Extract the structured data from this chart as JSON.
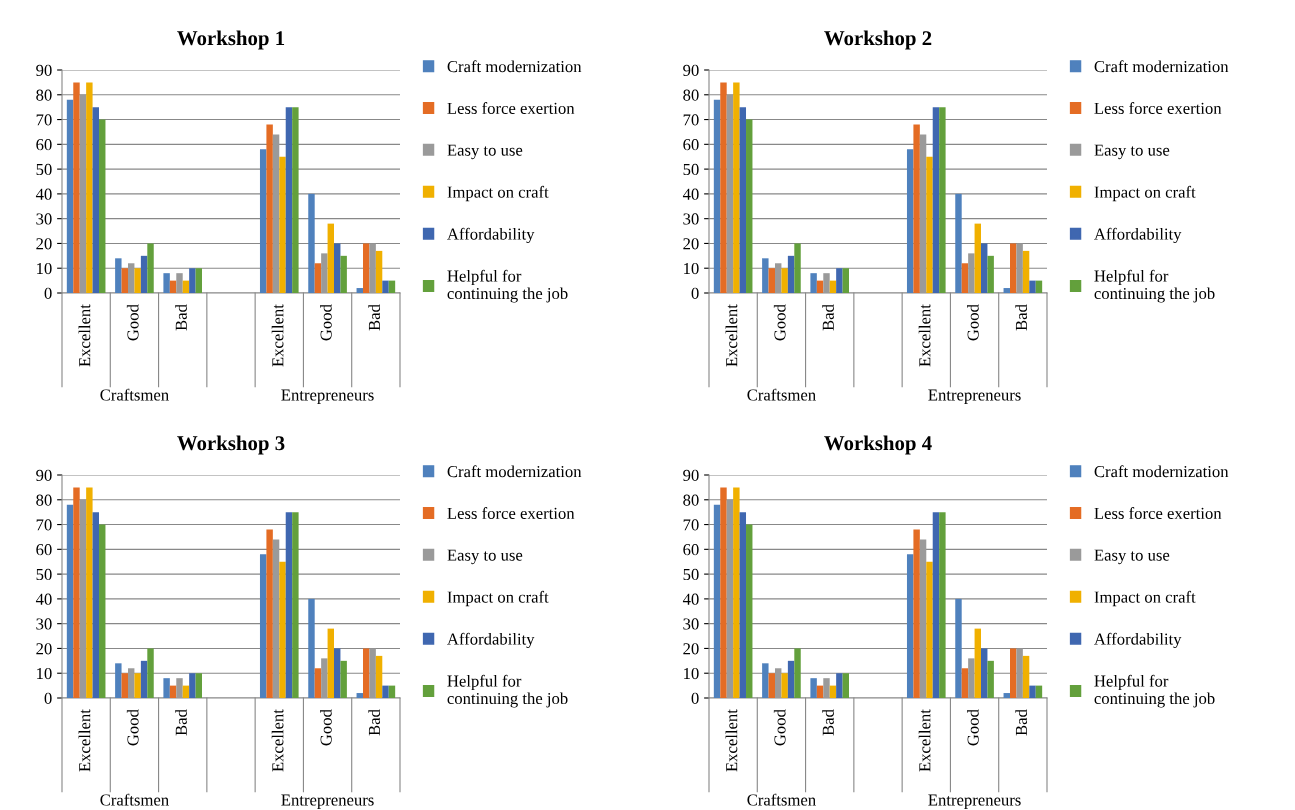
{
  "chart_data": [
    {
      "type": "bar",
      "title": "Workshop 1",
      "categories": [
        "Excellent",
        "Good",
        "Bad",
        null,
        "Excellent",
        "Good",
        "Bad"
      ],
      "annotations": [
        "Craftsmen",
        "Entrepreneurs"
      ],
      "ylim": [
        0,
        90
      ],
      "yticks": [
        0,
        10,
        20,
        30,
        40,
        50,
        60,
        70,
        80,
        90
      ],
      "grid": "y",
      "legend": "right",
      "series": [
        {
          "name": "Craft modernization",
          "color": "#4f81bd",
          "values": [
            78,
            14,
            8,
            null,
            58,
            40,
            2
          ]
        },
        {
          "name": "Less force exertion",
          "color": "#e46c24",
          "values": [
            85,
            10,
            5,
            null,
            68,
            12,
            20
          ]
        },
        {
          "name": "Easy to use",
          "color": "#9a9a9a",
          "values": [
            80,
            12,
            8,
            null,
            64,
            16,
            20
          ]
        },
        {
          "name": "Impact on craft",
          "color": "#f0b000",
          "values": [
            85,
            10,
            5,
            null,
            55,
            28,
            17
          ]
        },
        {
          "name": "Affordability",
          "color": "#3f67b0",
          "values": [
            75,
            15,
            10,
            null,
            75,
            20,
            5
          ]
        },
        {
          "name": "Helpful for\ncontinuing the job",
          "color": "#63a03c",
          "values": [
            70,
            20,
            10,
            null,
            75,
            15,
            5
          ]
        }
      ]
    },
    {
      "type": "bar",
      "title": "Workshop 2",
      "categories": [
        "Excellent",
        "Good",
        "Bad",
        null,
        "Excellent",
        "Good",
        "Bad"
      ],
      "annotations": [
        "Craftsmen",
        "Entrepreneurs"
      ],
      "ylim": [
        0,
        90
      ],
      "yticks": [
        0,
        10,
        20,
        30,
        40,
        50,
        60,
        70,
        80,
        90
      ],
      "grid": "y",
      "legend": "right",
      "series": [
        {
          "name": "Craft modernization",
          "color": "#4f81bd",
          "values": [
            78,
            14,
            8,
            null,
            58,
            40,
            2
          ]
        },
        {
          "name": "Less force exertion",
          "color": "#e46c24",
          "values": [
            85,
            10,
            5,
            null,
            68,
            12,
            20
          ]
        },
        {
          "name": "Easy to use",
          "color": "#9a9a9a",
          "values": [
            80,
            12,
            8,
            null,
            64,
            16,
            20
          ]
        },
        {
          "name": "Impact on craft",
          "color": "#f0b000",
          "values": [
            85,
            10,
            5,
            null,
            55,
            28,
            17
          ]
        },
        {
          "name": "Affordability",
          "color": "#3f67b0",
          "values": [
            75,
            15,
            10,
            null,
            75,
            20,
            5
          ]
        },
        {
          "name": "Helpful for\ncontinuing the job",
          "color": "#63a03c",
          "values": [
            70,
            20,
            10,
            null,
            75,
            15,
            5
          ]
        }
      ]
    },
    {
      "type": "bar",
      "title": "Workshop 3",
      "categories": [
        "Excellent",
        "Good",
        "Bad",
        null,
        "Excellent",
        "Good",
        "Bad"
      ],
      "annotations": [
        "Craftsmen",
        "Entrepreneurs"
      ],
      "ylim": [
        0,
        90
      ],
      "yticks": [
        0,
        10,
        20,
        30,
        40,
        50,
        60,
        70,
        80,
        90
      ],
      "grid": "y",
      "legend": "right",
      "series": [
        {
          "name": "Craft modernization",
          "color": "#4f81bd",
          "values": [
            78,
            14,
            8,
            null,
            58,
            40,
            2
          ]
        },
        {
          "name": "Less force exertion",
          "color": "#e46c24",
          "values": [
            85,
            10,
            5,
            null,
            68,
            12,
            20
          ]
        },
        {
          "name": "Easy to use",
          "color": "#9a9a9a",
          "values": [
            80,
            12,
            8,
            null,
            64,
            16,
            20
          ]
        },
        {
          "name": "Impact on craft",
          "color": "#f0b000",
          "values": [
            85,
            10,
            5,
            null,
            55,
            28,
            17
          ]
        },
        {
          "name": "Affordability",
          "color": "#3f67b0",
          "values": [
            75,
            15,
            10,
            null,
            75,
            20,
            5
          ]
        },
        {
          "name": "Helpful for\ncontinuing the job",
          "color": "#63a03c",
          "values": [
            70,
            20,
            10,
            null,
            75,
            15,
            5
          ]
        }
      ]
    },
    {
      "type": "bar",
      "title": "Workshop 4",
      "categories": [
        "Excellent",
        "Good",
        "Bad",
        null,
        "Excellent",
        "Good",
        "Bad"
      ],
      "annotations": [
        "Craftsmen",
        "Entrepreneurs"
      ],
      "ylim": [
        0,
        90
      ],
      "yticks": [
        0,
        10,
        20,
        30,
        40,
        50,
        60,
        70,
        80,
        90
      ],
      "grid": "y",
      "legend": "right",
      "series": [
        {
          "name": "Craft modernization",
          "color": "#4f81bd",
          "values": [
            78,
            14,
            8,
            null,
            58,
            40,
            2
          ]
        },
        {
          "name": "Less force exertion",
          "color": "#e46c24",
          "values": [
            85,
            10,
            5,
            null,
            68,
            12,
            20
          ]
        },
        {
          "name": "Easy to use",
          "color": "#9a9a9a",
          "values": [
            80,
            12,
            8,
            null,
            64,
            16,
            20
          ]
        },
        {
          "name": "Impact on craft",
          "color": "#f0b000",
          "values": [
            85,
            10,
            5,
            null,
            55,
            28,
            17
          ]
        },
        {
          "name": "Affordability",
          "color": "#3f67b0",
          "values": [
            75,
            15,
            10,
            null,
            75,
            20,
            5
          ]
        },
        {
          "name": "Helpful for\ncontinuing the job",
          "color": "#63a03c",
          "values": [
            70,
            20,
            10,
            null,
            75,
            15,
            5
          ]
        }
      ]
    }
  ]
}
